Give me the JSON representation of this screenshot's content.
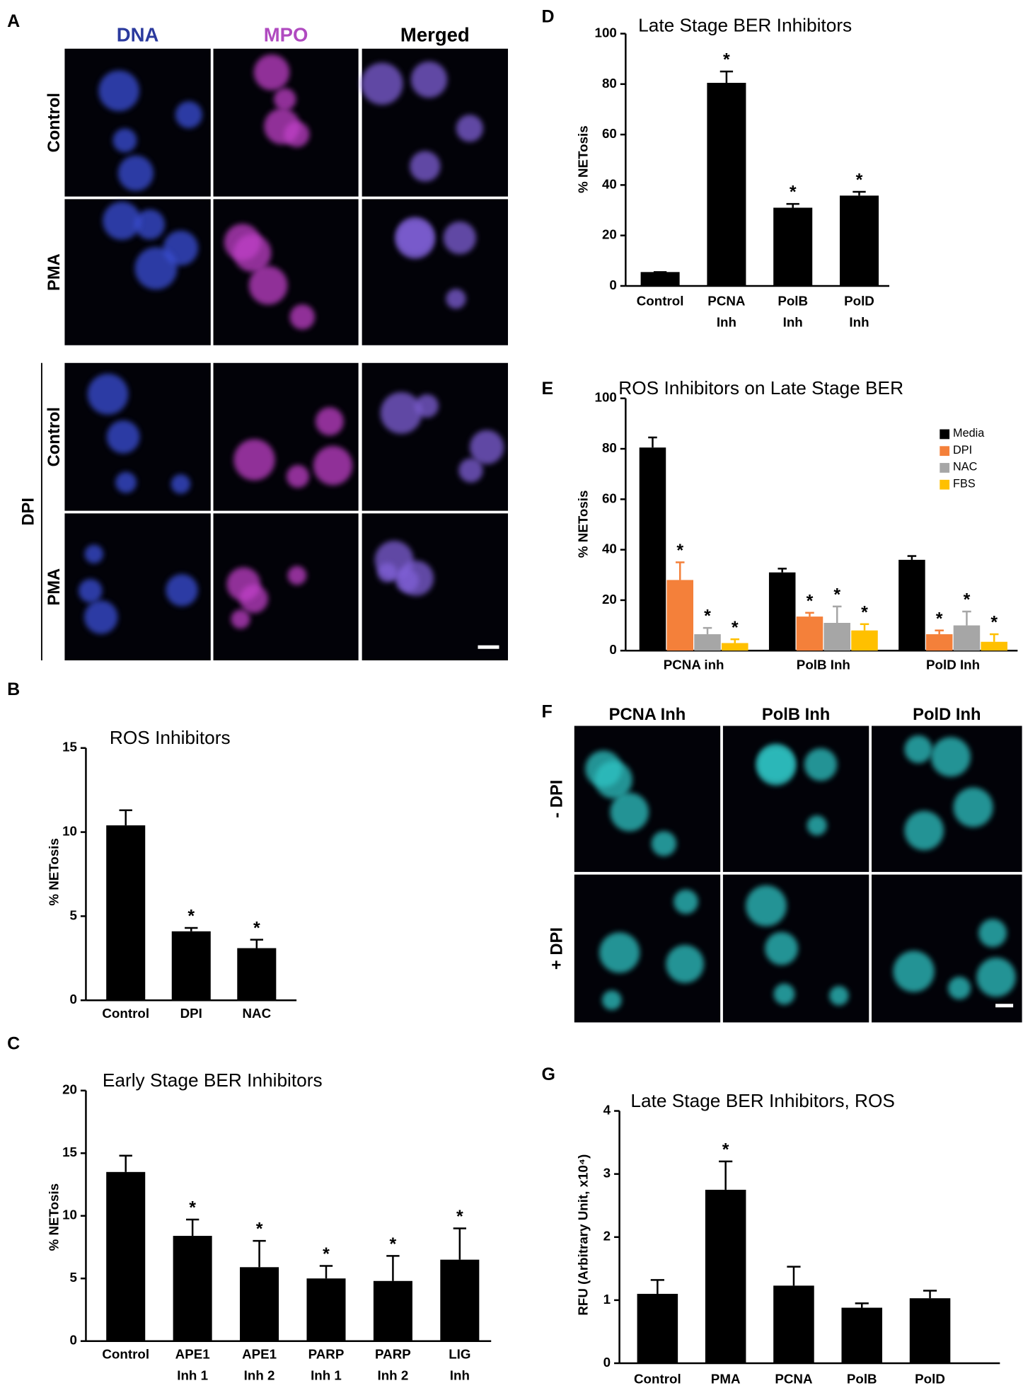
{
  "figure": {
    "panel_labels": [
      "A",
      "B",
      "C",
      "D",
      "E",
      "F",
      "G"
    ],
    "panel_a": {
      "columns": [
        "DNA",
        "MPO",
        "Merged"
      ],
      "rows": [
        "Control",
        "PMA",
        "Control",
        "PMA"
      ],
      "group": "DPI"
    },
    "panel_f": {
      "columns": [
        "PCNA Inh",
        "PolB Inh",
        "PolD Inh"
      ],
      "rows": [
        "- DPI",
        "+ DPI"
      ]
    }
  },
  "chart_data": [
    {
      "type": "bar",
      "title": "ROS Inhibitors",
      "y_label": "% NETosis",
      "categories": [
        "Control",
        "DPI",
        "NAC"
      ],
      "values": [
        10.4,
        4.1,
        3.1
      ],
      "errors": [
        0.9,
        0.2,
        0.5
      ],
      "annotations": [
        null,
        "*",
        "*"
      ],
      "color": "#000000",
      "ylim": [
        0,
        15
      ],
      "yticks": [
        0,
        5,
        10,
        15
      ]
    },
    {
      "type": "bar",
      "title": "Early Stage BER Inhibitors",
      "y_label": "% NETosis",
      "categories": [
        "Control",
        "APE1\nInh 1",
        "APE1\nInh 2",
        "PARP\nInh 1",
        "PARP\nInh 2",
        "LIG\nInh"
      ],
      "values": [
        13.5,
        8.4,
        5.9,
        5.0,
        4.8,
        6.5
      ],
      "errors": [
        1.3,
        1.3,
        2.1,
        1.0,
        2.0,
        2.5
      ],
      "annotations": [
        null,
        "*",
        "*",
        "*",
        "*",
        "*"
      ],
      "color": "#000000",
      "ylim": [
        0,
        20
      ],
      "yticks": [
        0,
        5,
        10,
        15,
        20
      ]
    },
    {
      "type": "bar",
      "title": "Late Stage BER Inhibitors",
      "y_label": "% NETosis",
      "categories": [
        "Control",
        "PCNA\nInh",
        "PolB\nInh",
        "PolD\nInh"
      ],
      "values": [
        5.5,
        80.5,
        31,
        35.8
      ],
      "errors": [
        0,
        4.5,
        1.5,
        1.5
      ],
      "annotations": [
        null,
        "*",
        "*",
        "*"
      ],
      "color": "#000000",
      "ylim": [
        0,
        100
      ],
      "yticks": [
        0,
        20,
        40,
        60,
        80,
        100
      ]
    },
    {
      "type": "grouped_bar",
      "title": "ROS Inhibitors on Late Stage BER",
      "y_label": "% NETosis",
      "categories": [
        "PCNA inh",
        "PolB Inh",
        "PolD Inh"
      ],
      "legend": "top-right",
      "series": [
        {
          "name": "Media",
          "color": "#000000",
          "values": [
            80.5,
            31,
            36
          ],
          "errors": [
            4,
            1.5,
            1.5
          ],
          "annotations": [
            null,
            null,
            null
          ]
        },
        {
          "name": "DPI",
          "color": "#f4803a",
          "values": [
            28,
            13.5,
            6.5
          ],
          "errors": [
            7,
            1.5,
            1.5
          ],
          "annotations": [
            "*",
            "*",
            "*"
          ]
        },
        {
          "name": "NAC",
          "color": "#a6a6a6",
          "values": [
            6.5,
            11,
            10
          ],
          "errors": [
            2.5,
            6.5,
            5.5
          ],
          "annotations": [
            "*",
            "*",
            "*"
          ]
        },
        {
          "name": "FBS",
          "color": "#ffc000",
          "values": [
            3,
            8,
            3.5
          ],
          "errors": [
            1.5,
            2.5,
            3
          ],
          "annotations": [
            "*",
            "*",
            "*"
          ]
        }
      ],
      "ylim": [
        0,
        100
      ],
      "yticks": [
        0,
        20,
        40,
        60,
        80,
        100
      ]
    },
    {
      "type": "bar",
      "title": "Late Stage BER Inhibitors, ROS",
      "y_label": "RFU (Arbitrary Unit, x10⁴)",
      "categories": [
        "Control",
        "PMA",
        "PCNA\nInh",
        "PolB\nInh",
        "PolD\nInh"
      ],
      "values": [
        1.1,
        2.75,
        1.23,
        0.88,
        1.03
      ],
      "errors": [
        0.22,
        0.45,
        0.3,
        0.07,
        0.12
      ],
      "annotations": [
        null,
        "*",
        null,
        null,
        null
      ],
      "color": "#000000",
      "ylim": [
        0,
        4
      ],
      "yticks": [
        0,
        1,
        2,
        3,
        4
      ]
    }
  ]
}
